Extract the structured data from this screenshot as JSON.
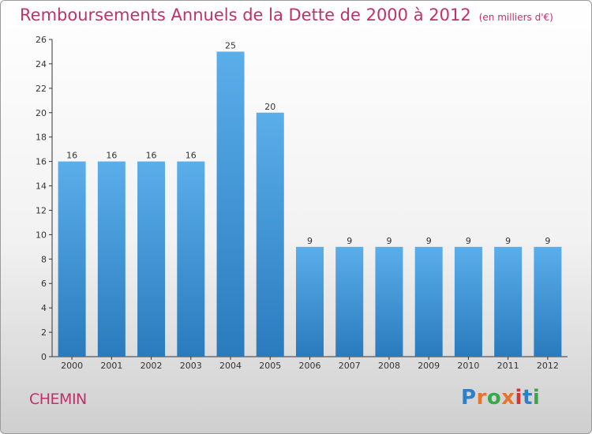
{
  "header": {
    "title": "Remboursements Annuels de la Dette de 2000 à 2012",
    "unit": "(en milliers d'€)"
  },
  "footer": {
    "commune": "CHEMIN",
    "brand": "Proxiti",
    "brand_colors": [
      "#2f7fc8",
      "#e8742a",
      "#3aa84a",
      "#e8742a",
      "#d7342f",
      "#2f7fc8",
      "#3aa84a"
    ]
  },
  "colors": {
    "title": "#c0306a",
    "bar_top": "#5aaeea",
    "bar_bottom": "#2a7bbd",
    "axis": "#333333"
  },
  "chart_data": {
    "type": "bar",
    "categories": [
      "2000",
      "2001",
      "2002",
      "2003",
      "2004",
      "2005",
      "2006",
      "2007",
      "2008",
      "2009",
      "2010",
      "2011",
      "2012"
    ],
    "values": [
      16,
      16,
      16,
      16,
      25,
      20,
      9,
      9,
      9,
      9,
      9,
      9,
      9
    ],
    "ylim": [
      0,
      26
    ],
    "yticks": [
      0,
      2,
      4,
      6,
      8,
      10,
      12,
      14,
      16,
      18,
      20,
      22,
      24,
      26
    ],
    "data_labels": true,
    "grid": false
  }
}
